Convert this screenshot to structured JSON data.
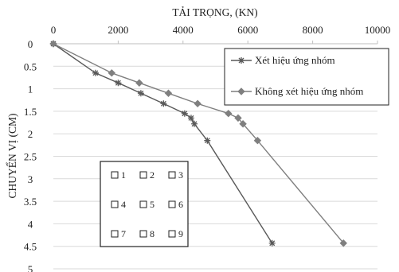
{
  "chart_data": {
    "type": "line",
    "title": "",
    "xlabel": "TẢI TRỌNG, (KN)",
    "ylabel": "CHUYỂN VỊ (CM)",
    "x_axis_position": "top",
    "y_axis_inverted": true,
    "xlim": [
      0,
      10000
    ],
    "ylim": [
      0,
      5
    ],
    "x_ticks": [
      "0",
      "2000",
      "4000",
      "6000",
      "8000",
      "10000"
    ],
    "y_ticks": [
      "0",
      "0.5",
      "1",
      "1.5",
      "2",
      "2.5",
      "3",
      "3.5",
      "4",
      "4.5",
      "5"
    ],
    "grid": "horizontal",
    "legend_position": "top-right",
    "series": [
      {
        "name": "Xét hiệu ứng nhóm",
        "marker": "star",
        "color": "#595959",
        "x": [
          0,
          1300,
          2000,
          2700,
          3400,
          4050,
          4250,
          4350,
          4750,
          6750
        ],
        "y": [
          0,
          0.65,
          0.87,
          1.1,
          1.33,
          1.55,
          1.65,
          1.78,
          2.15,
          4.43
        ]
      },
      {
        "name": "Không xét hiệu ứng nhóm",
        "marker": "diamond",
        "color": "#7f7f7f",
        "x": [
          0,
          1800,
          2650,
          3550,
          4450,
          5400,
          5700,
          5850,
          6300,
          8950
        ],
        "y": [
          0,
          0.65,
          0.87,
          1.1,
          1.33,
          1.55,
          1.65,
          1.78,
          2.15,
          4.43
        ]
      }
    ],
    "inset_labels": [
      "1",
      "2",
      "3",
      "4",
      "5",
      "6",
      "7",
      "8",
      "9"
    ]
  }
}
